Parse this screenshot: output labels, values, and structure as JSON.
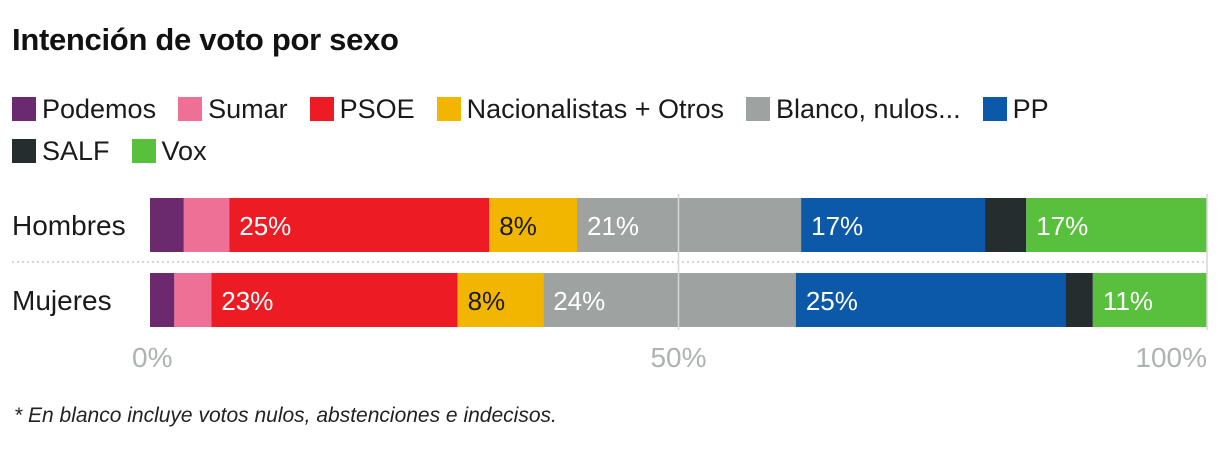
{
  "title": "Intención de voto por sexo",
  "footnote": "* En blanco incluye votos nulos, abstenciones e indecisos.",
  "legend_rows": [
    [
      {
        "label": "Podemos",
        "color": "#6b2a6e"
      },
      {
        "label": "Sumar",
        "color": "#ee7096"
      },
      {
        "label": "PSOE",
        "color": "#ed1c24"
      },
      {
        "label": "Nacionalistas + Otros",
        "color": "#f2b600"
      },
      {
        "label": "Blanco, nulos...",
        "color": "#9ea3a1"
      },
      {
        "label": "PP",
        "color": "#0b59a8"
      }
    ],
    [
      {
        "label": "SALF",
        "color": "#262d2e"
      },
      {
        "label": "Vox",
        "color": "#58c03d"
      }
    ]
  ],
  "chart_data": {
    "type": "bar",
    "orientation": "horizontal",
    "stacked": true,
    "title": "Intención de voto por sexo",
    "categories": [
      "Hombres",
      "Mujeres"
    ],
    "xlim": [
      0,
      100
    ],
    "x_ticks": [
      "0%",
      "50%",
      "100%"
    ],
    "grid": true,
    "legend_placement": "top",
    "series": [
      {
        "name": "Podemos",
        "color": "#6b2a6e",
        "values": [
          3.2,
          2.3
        ],
        "labels": [
          "",
          ""
        ]
      },
      {
        "name": "Sumar",
        "color": "#ee7096",
        "values": [
          4.3,
          3.5
        ],
        "labels": [
          "",
          ""
        ]
      },
      {
        "name": "PSOE",
        "color": "#ed1c24",
        "values": [
          24.6,
          23.3
        ],
        "labels": [
          "25%",
          "23%"
        ]
      },
      {
        "name": "Nacionalistas + Otros",
        "color": "#f2b600",
        "values": [
          8.3,
          8.1
        ],
        "labels": [
          "8%",
          "8%"
        ]
      },
      {
        "name": "Blanco, nulos...",
        "color": "#9ea3a1",
        "values": [
          21.2,
          23.9
        ],
        "labels": [
          "21%",
          "24%"
        ]
      },
      {
        "name": "PP",
        "color": "#0b59a8",
        "values": [
          17.4,
          25.5
        ],
        "labels": [
          "17%",
          "25%"
        ]
      },
      {
        "name": "SALF",
        "color": "#262d2e",
        "values": [
          3.9,
          2.6
        ],
        "labels": [
          "",
          ""
        ]
      },
      {
        "name": "Vox",
        "color": "#58c03d",
        "values": [
          17.1,
          10.8
        ],
        "labels": [
          "17%",
          "11%"
        ]
      }
    ]
  }
}
